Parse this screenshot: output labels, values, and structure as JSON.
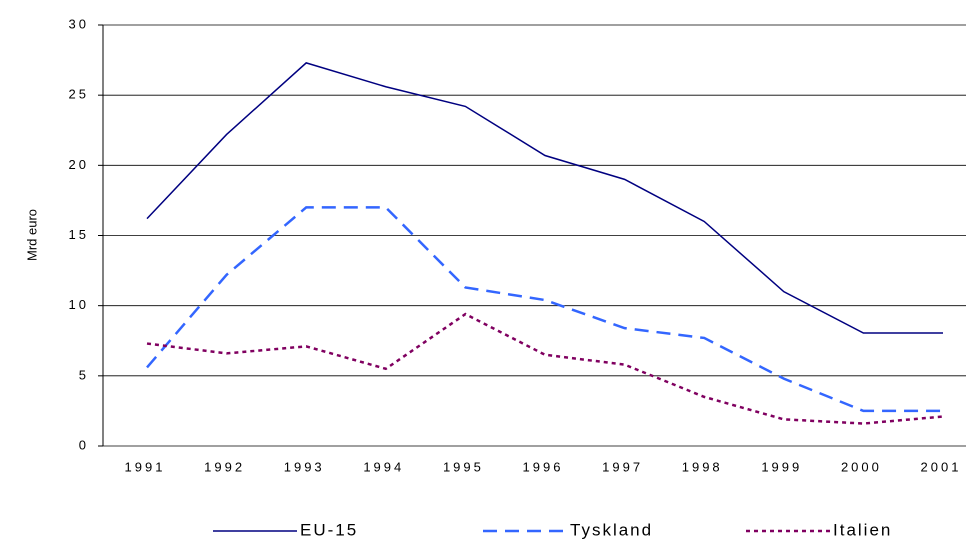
{
  "chart_data": {
    "type": "line",
    "ylabel": "Mrd euro",
    "categories": [
      "1991",
      "1992",
      "1993",
      "1994",
      "1995",
      "1996",
      "1997",
      "1998",
      "1999",
      "2000",
      "2001"
    ],
    "series": [
      {
        "name": "EU-15",
        "color": "#000080",
        "style": "solid",
        "values": [
          16.2,
          22.2,
          27.3,
          25.6,
          24.2,
          20.7,
          19.0,
          16.0,
          11.0,
          8.05,
          8.05
        ]
      },
      {
        "name": "Tyskland",
        "color": "#3366ff",
        "style": "dashed",
        "values": [
          5.6,
          12.2,
          17.0,
          17.0,
          11.3,
          10.4,
          8.4,
          7.7,
          4.8,
          2.5,
          2.5
        ]
      },
      {
        "name": "Italien",
        "color": "#800060",
        "style": "dotted",
        "values": [
          7.3,
          6.6,
          7.1,
          5.5,
          9.4,
          6.5,
          5.8,
          3.5,
          1.9,
          1.6,
          2.1
        ]
      }
    ],
    "ylim": [
      0,
      30
    ],
    "yticks": [
      0,
      5,
      10,
      15,
      20,
      25,
      30
    ],
    "grid": true,
    "legend": "bottom"
  }
}
